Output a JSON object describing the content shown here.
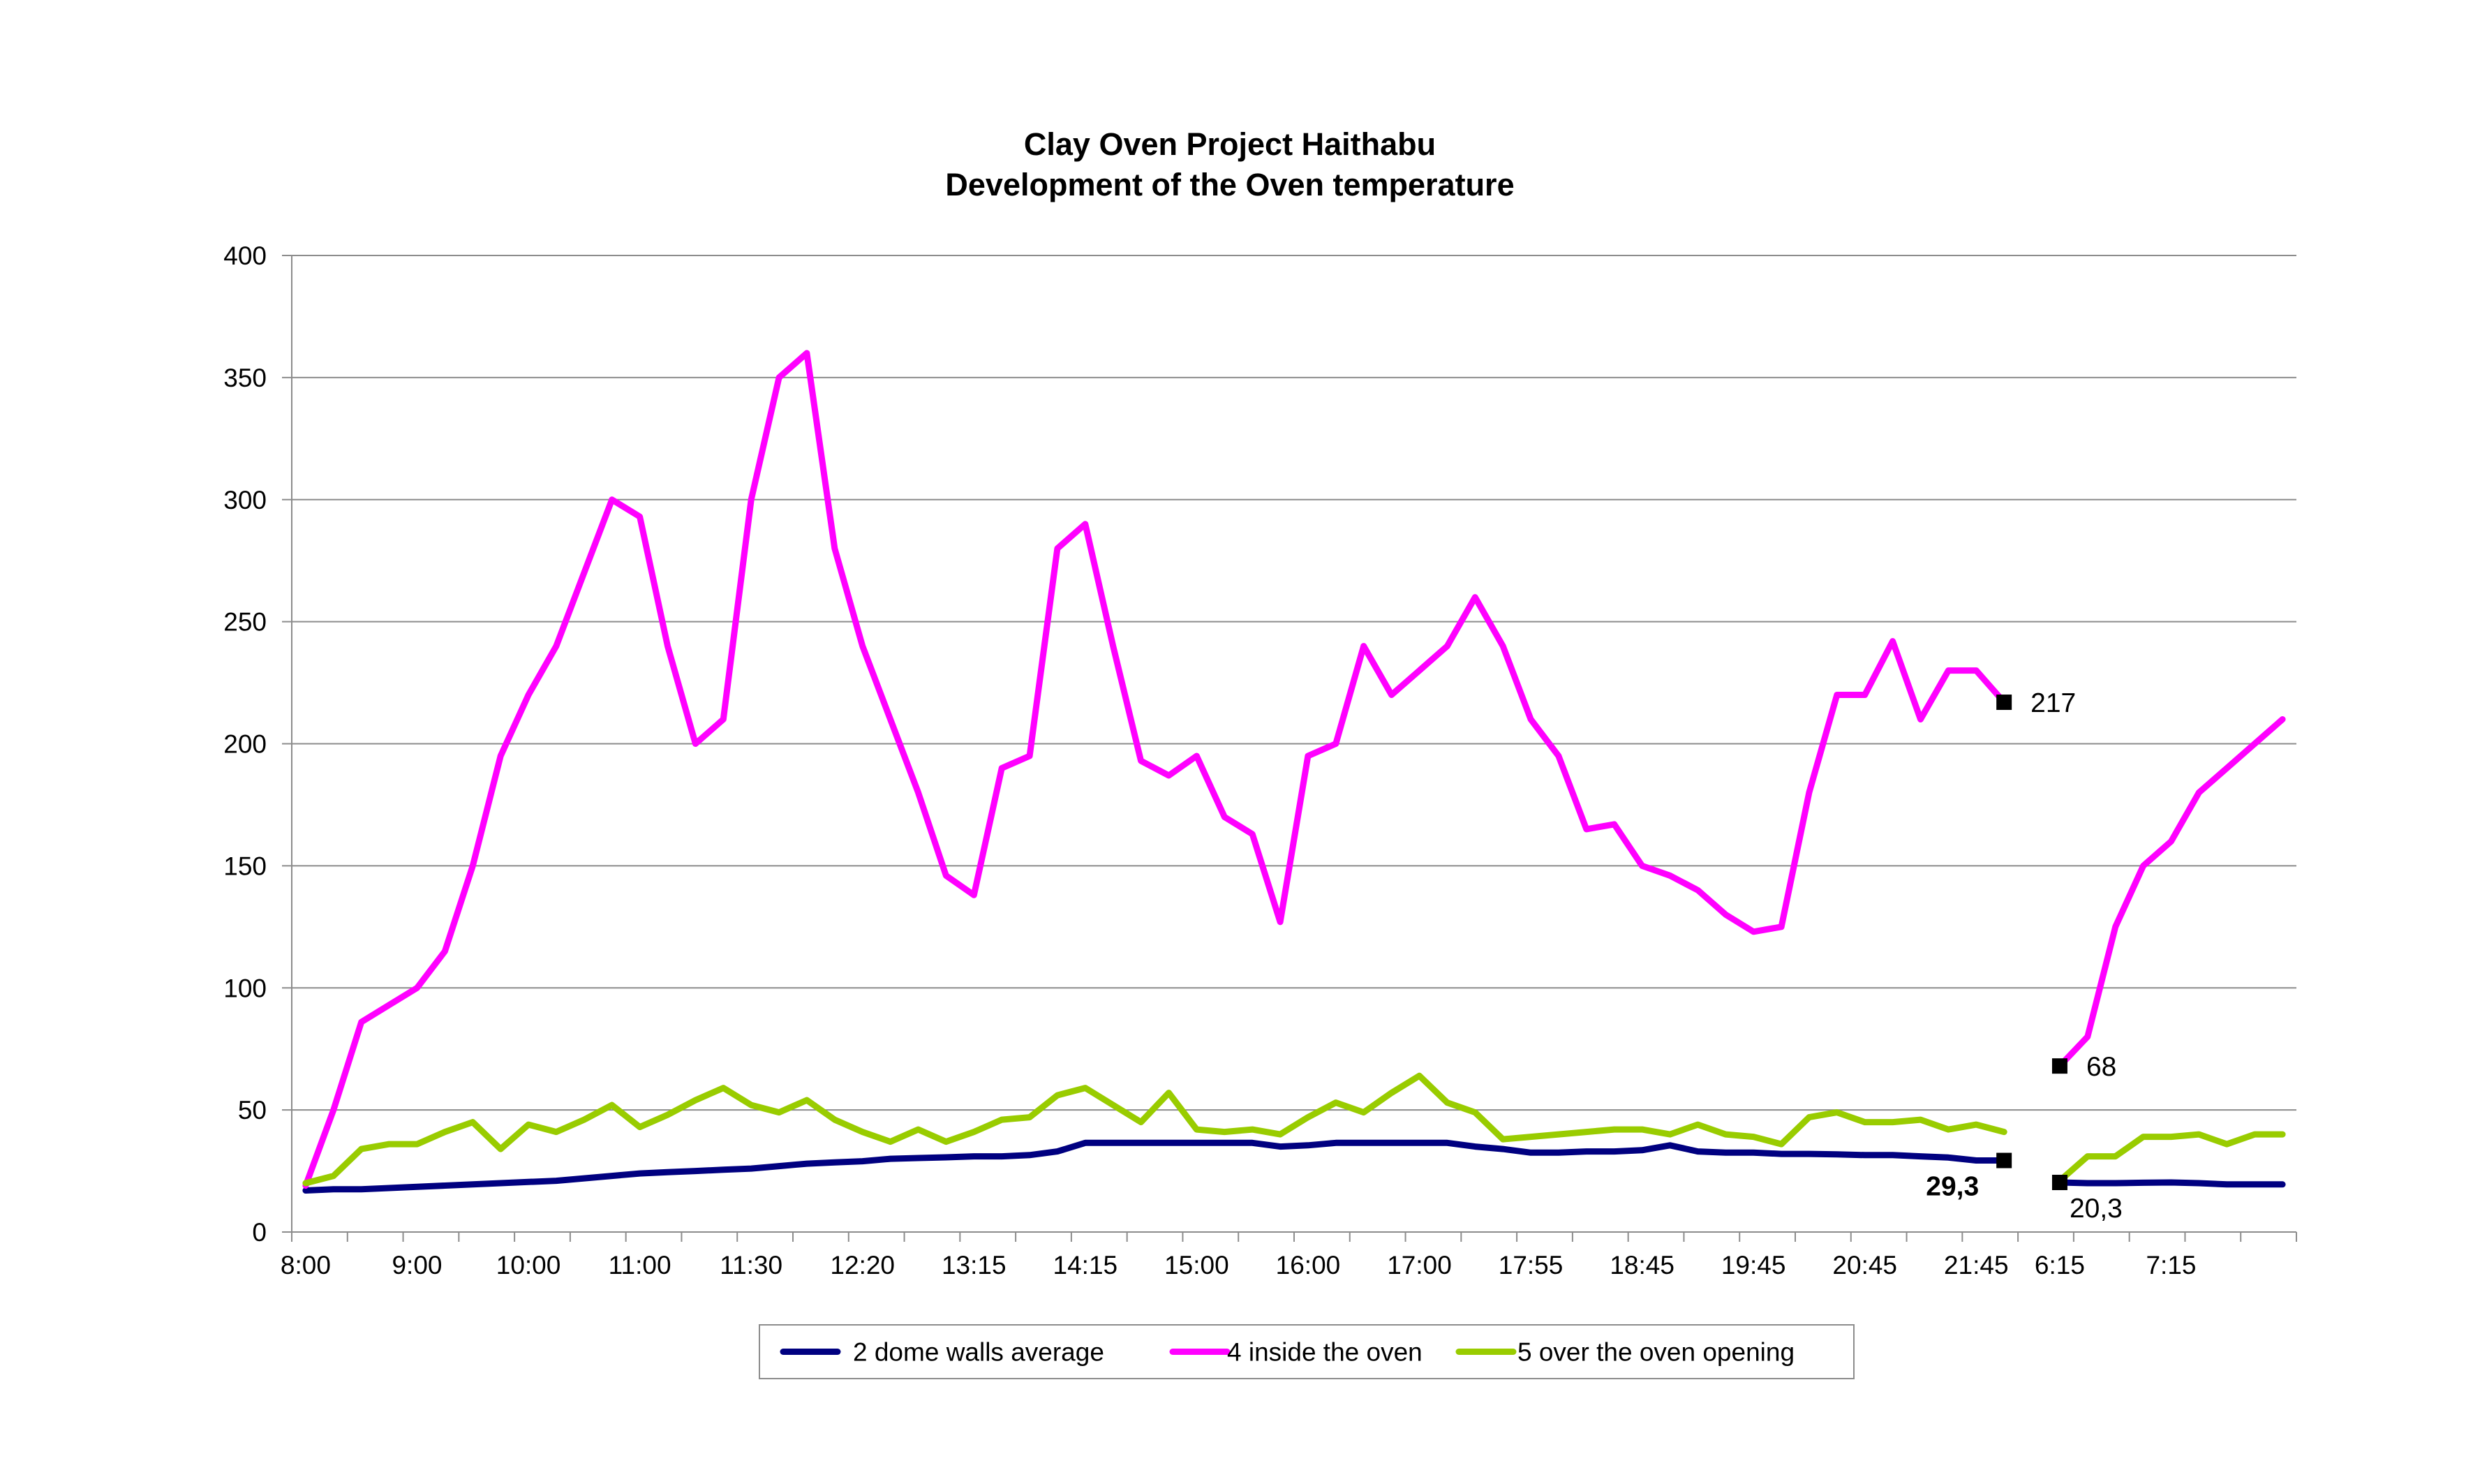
{
  "chart_data": {
    "type": "line",
    "title": "Clay Oven Project Haithabu",
    "subtitle": "Development of the Oven temperature",
    "xlabel": "",
    "ylabel": "",
    "ylim": [
      0,
      400
    ],
    "yticks": [
      "0",
      "50",
      "100",
      "150",
      "200",
      "250",
      "300",
      "350",
      "400"
    ],
    "xtick_labels": [
      "8:00",
      "9:00",
      "10:00",
      "11:00",
      "11:30",
      "12:20",
      "13:15",
      "14:15",
      "15:00",
      "16:00",
      "17:00",
      "17:55",
      "18:45",
      "19:45",
      "20:45",
      "21:45",
      "6:15",
      "7:15"
    ],
    "xtick_label_indices": [
      0,
      4,
      8,
      12,
      16,
      20,
      24,
      28,
      32,
      36,
      40,
      44,
      48,
      52,
      56,
      60,
      63,
      67
    ],
    "num_points": 72,
    "gap_after_index": 61,
    "grid": true,
    "legend_position": "bottom",
    "series": [
      {
        "name": "2 dome walls average",
        "color": "#000080",
        "values": [
          17,
          17.5,
          17.5,
          18,
          18.5,
          19,
          19.5,
          20,
          20.5,
          21,
          22,
          23,
          24,
          24.5,
          25,
          25.5,
          26,
          27,
          28,
          28.5,
          29,
          30,
          30.3,
          30.6,
          31,
          31,
          31.5,
          33,
          36.5,
          36.5,
          36.5,
          36.5,
          36.5,
          36.5,
          36.5,
          35,
          35.5,
          36.5,
          36.5,
          36.5,
          36.5,
          36.5,
          35,
          34,
          32.5,
          32.5,
          33,
          33,
          33.5,
          35.5,
          33,
          32.5,
          32.5,
          32,
          32,
          31.8,
          31.5,
          31.5,
          31,
          30.5,
          29.3,
          29.3,
          null,
          20.3,
          20,
          20,
          20.2,
          20.3,
          20,
          19.5,
          19.5,
          19.5
        ]
      },
      {
        "name": "4 inside the oven",
        "color": "#FF00FF",
        "values": [
          19,
          50,
          86,
          93,
          100,
          115,
          150,
          195,
          220,
          240,
          270,
          300,
          293,
          240,
          200,
          210,
          300,
          350,
          360,
          280,
          240,
          210,
          180,
          146,
          138,
          190,
          195,
          280,
          290,
          240,
          193,
          187,
          195,
          170,
          163,
          127,
          195,
          200,
          240,
          220,
          230,
          240,
          260,
          240,
          210,
          195,
          165,
          167,
          150,
          146,
          140,
          130,
          123,
          125,
          180,
          220,
          220,
          242,
          210,
          230,
          230,
          217,
          null,
          68,
          80,
          125,
          150,
          160,
          180,
          190,
          200,
          210
        ]
      },
      {
        "name": "5 over the oven opening",
        "color": "#99CC00",
        "values": [
          20,
          23,
          34,
          36,
          36,
          41,
          45,
          34,
          44,
          41,
          46,
          52,
          43,
          48,
          54,
          59,
          52,
          49,
          54,
          46,
          41,
          37,
          42,
          37,
          41,
          46,
          47,
          56,
          59,
          52,
          45,
          57,
          42,
          41,
          42,
          40,
          47,
          53,
          49,
          57,
          64,
          53,
          49,
          38,
          39,
          40,
          41,
          42,
          42,
          40,
          44,
          40,
          39,
          36,
          47,
          49,
          45,
          45,
          46,
          42,
          44,
          41,
          null,
          21,
          31,
          31,
          39,
          39,
          40,
          36,
          40,
          40
        ]
      }
    ],
    "annotations": [
      {
        "series": 1,
        "index": 61,
        "label": "217",
        "bold": false,
        "label_dx": 38,
        "label_dy": 14
      },
      {
        "series": 1,
        "index": 63,
        "label": "68",
        "bold": false,
        "label_dx": 38,
        "label_dy": 14
      },
      {
        "series": 0,
        "index": 61,
        "label": "29,3",
        "bold": true,
        "label_dx": -36,
        "label_dy": 50,
        "anchor": "end"
      },
      {
        "series": 0,
        "index": 63,
        "label": "20,3",
        "bold": false,
        "label_dx": 14,
        "label_dy": 50
      }
    ]
  }
}
